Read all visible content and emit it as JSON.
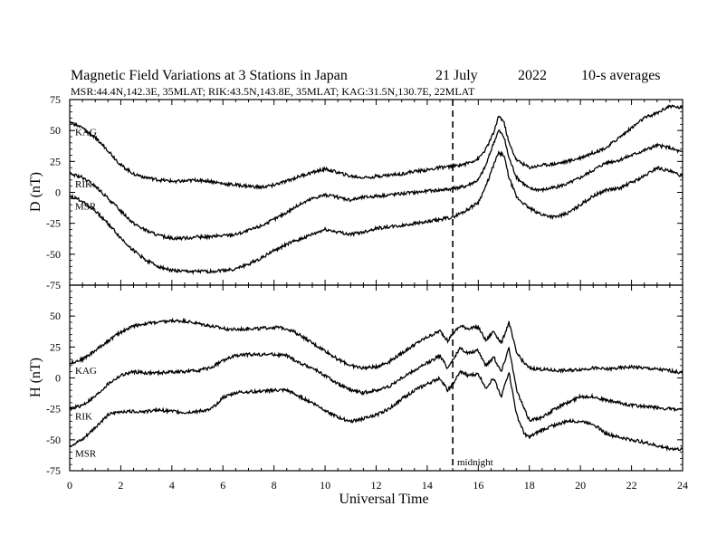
{
  "chart_data": [
    {
      "type": "line",
      "panel": "D",
      "title": "Magnetic Field Variations at 3 Stations in Japan",
      "date": "21 July",
      "year": "2022",
      "averaging": "10-s averages",
      "subtitle": "MSR:44.4N,142.3E, 35MLAT;  RIK:43.5N,143.8E, 35MLAT;  KAG:31.5N,130.7E, 22MLAT",
      "ylabel": "D (nT)",
      "xlabel": "",
      "xlim": [
        0,
        24
      ],
      "ylim": [
        -75,
        75
      ],
      "yticks": [
        -75,
        -50,
        -25,
        0,
        25,
        50,
        75
      ],
      "annotation": "",
      "series": [
        {
          "name": "KAG",
          "x": [
            0,
            0.5,
            1,
            1.5,
            2,
            2.5,
            3,
            3.5,
            4,
            4.5,
            5,
            5.5,
            6,
            6.5,
            7,
            7.5,
            8,
            8.5,
            9,
            9.5,
            10,
            10.5,
            11,
            11.5,
            12,
            12.5,
            13,
            13.5,
            14,
            14.5,
            15,
            15.5,
            16,
            16.3,
            16.6,
            16.8,
            17,
            17.2,
            17.5,
            18,
            18.5,
            19,
            19.5,
            20,
            20.5,
            21,
            21.5,
            22,
            22.5,
            23,
            23.5,
            24
          ],
          "values": [
            57,
            52,
            44,
            34,
            22,
            15,
            12,
            10,
            9,
            9,
            10,
            9,
            7,
            6,
            5,
            4,
            6,
            9,
            13,
            16,
            19,
            16,
            13,
            12,
            13,
            14,
            15,
            17,
            18,
            20,
            21,
            23,
            27,
            35,
            48,
            62,
            57,
            40,
            26,
            20,
            22,
            23,
            25,
            28,
            32,
            36,
            44,
            52,
            60,
            64,
            70,
            68
          ]
        },
        {
          "name": "RIK",
          "x": [
            0,
            0.5,
            1,
            1.5,
            2,
            2.5,
            3,
            3.5,
            4,
            4.5,
            5,
            5.5,
            6,
            6.5,
            7,
            7.5,
            8,
            8.5,
            9,
            9.5,
            10,
            10.5,
            11,
            11.5,
            12,
            12.5,
            13,
            13.5,
            14,
            14.5,
            15,
            15.5,
            16,
            16.3,
            16.6,
            16.8,
            17,
            17.2,
            17.5,
            18,
            18.5,
            19,
            19.5,
            20,
            20.5,
            21,
            21.5,
            22,
            22.5,
            23,
            23.5,
            24
          ],
          "values": [
            15,
            12,
            5,
            -5,
            -15,
            -25,
            -31,
            -35,
            -37,
            -37,
            -36,
            -36,
            -35,
            -34,
            -31,
            -27,
            -22,
            -16,
            -10,
            -5,
            -2,
            -4,
            -6,
            -4,
            -3,
            -2,
            -1,
            0,
            1,
            2,
            3,
            5,
            10,
            22,
            40,
            50,
            45,
            28,
            12,
            3,
            2,
            4,
            7,
            12,
            18,
            24,
            26,
            30,
            34,
            38,
            36,
            32
          ]
        },
        {
          "name": "MSR",
          "x": [
            0,
            0.5,
            1,
            1.5,
            2,
            2.5,
            3,
            3.5,
            4,
            4.5,
            5,
            5.5,
            6,
            6.5,
            7,
            7.5,
            8,
            8.5,
            9,
            9.5,
            10,
            10.5,
            11,
            11.5,
            12,
            12.5,
            13,
            13.5,
            14,
            14.5,
            15,
            15.5,
            16,
            16.3,
            16.6,
            16.8,
            17,
            17.2,
            17.5,
            18,
            18.5,
            19,
            19.5,
            20,
            20.5,
            21,
            21.5,
            22,
            22.5,
            23,
            23.5,
            24
          ],
          "values": [
            -3,
            -7,
            -15,
            -25,
            -37,
            -47,
            -55,
            -60,
            -63,
            -64,
            -64,
            -64,
            -63,
            -62,
            -58,
            -53,
            -47,
            -42,
            -38,
            -34,
            -30,
            -32,
            -34,
            -32,
            -29,
            -28,
            -27,
            -25,
            -24,
            -22,
            -20,
            -15,
            -8,
            5,
            22,
            32,
            30,
            12,
            -4,
            -13,
            -18,
            -20,
            -17,
            -10,
            -3,
            2,
            3,
            8,
            13,
            20,
            17,
            13
          ]
        }
      ]
    },
    {
      "type": "line",
      "panel": "H",
      "title": "",
      "ylabel": "H (nT)",
      "xlabel": "Universal Time",
      "xlim": [
        0,
        24
      ],
      "ylim": [
        -75,
        75
      ],
      "xticks": [
        0,
        2,
        4,
        6,
        8,
        10,
        12,
        14,
        16,
        18,
        20,
        22,
        24
      ],
      "yticks": [
        -75,
        -50,
        -25,
        0,
        25,
        50
      ],
      "annotation": "midnight",
      "vline_x": 15,
      "series": [
        {
          "name": "KAG",
          "x": [
            0,
            0.5,
            1,
            1.5,
            2,
            2.5,
            3,
            3.5,
            4,
            4.5,
            5,
            5.5,
            6,
            6.5,
            7,
            7.5,
            8,
            8.5,
            9,
            9.5,
            10,
            10.5,
            11,
            11.5,
            12,
            12.5,
            13,
            13.5,
            14,
            14.5,
            14.8,
            15,
            15.3,
            15.6,
            16,
            16.3,
            16.6,
            16.9,
            17.2,
            17.5,
            17.8,
            18,
            18.5,
            19,
            19.5,
            20,
            20.5,
            21,
            21.5,
            22,
            22.5,
            23,
            23.5,
            24
          ],
          "values": [
            12,
            15,
            22,
            30,
            37,
            42,
            44,
            45,
            46,
            46,
            44,
            42,
            40,
            39,
            40,
            40,
            41,
            40,
            35,
            28,
            22,
            15,
            10,
            8,
            9,
            13,
            20,
            27,
            33,
            38,
            30,
            36,
            42,
            40,
            41,
            30,
            38,
            28,
            45,
            20,
            12,
            8,
            7,
            6,
            6,
            7,
            8,
            7,
            8,
            9,
            8,
            7,
            6,
            4
          ]
        },
        {
          "name": "RIK",
          "x": [
            0,
            0.5,
            1,
            1.5,
            2,
            2.5,
            3,
            3.5,
            4,
            4.5,
            5,
            5.5,
            6,
            6.5,
            7,
            7.5,
            8,
            8.5,
            9,
            9.5,
            10,
            10.5,
            11,
            11.5,
            12,
            12.5,
            13,
            13.5,
            14,
            14.5,
            14.8,
            15,
            15.3,
            15.6,
            16,
            16.3,
            16.6,
            16.9,
            17.2,
            17.5,
            17.8,
            18,
            18.5,
            19,
            19.5,
            20,
            20.5,
            21,
            21.5,
            22,
            22.5,
            23,
            23.5,
            24
          ],
          "values": [
            -25,
            -22,
            -15,
            -5,
            2,
            5,
            4,
            4,
            5,
            5,
            6,
            8,
            14,
            18,
            19,
            19,
            19,
            18,
            12,
            8,
            2,
            -5,
            -10,
            -12,
            -10,
            -7,
            0,
            6,
            12,
            18,
            8,
            15,
            24,
            20,
            22,
            10,
            17,
            5,
            25,
            -10,
            -25,
            -34,
            -32,
            -25,
            -20,
            -15,
            -15,
            -18,
            -20,
            -22,
            -23,
            -24,
            -25,
            -26
          ]
        },
        {
          "name": "MSR",
          "x": [
            0,
            0.5,
            1,
            1.5,
            2,
            2.5,
            3,
            3.5,
            4,
            4.5,
            5,
            5.5,
            6,
            6.5,
            7,
            7.5,
            8,
            8.5,
            9,
            9.5,
            10,
            10.5,
            11,
            11.5,
            12,
            12.5,
            13,
            13.5,
            14,
            14.5,
            14.8,
            15,
            15.3,
            15.6,
            16,
            16.3,
            16.6,
            16.9,
            17.2,
            17.5,
            17.8,
            18,
            18.5,
            19,
            19.5,
            20,
            20.5,
            21,
            21.5,
            22,
            22.5,
            23,
            23.5,
            24
          ],
          "values": [
            -55,
            -50,
            -40,
            -30,
            -27,
            -27,
            -27,
            -26,
            -27,
            -28,
            -27,
            -26,
            -16,
            -12,
            -11,
            -11,
            -10,
            -10,
            -15,
            -20,
            -26,
            -32,
            -35,
            -33,
            -30,
            -25,
            -17,
            -10,
            -5,
            0,
            -10,
            -5,
            5,
            2,
            3,
            -8,
            0,
            -15,
            5,
            -30,
            -45,
            -48,
            -42,
            -38,
            -35,
            -35,
            -37,
            -45,
            -48,
            -50,
            -52,
            -55,
            -57,
            -58
          ]
        }
      ]
    }
  ]
}
